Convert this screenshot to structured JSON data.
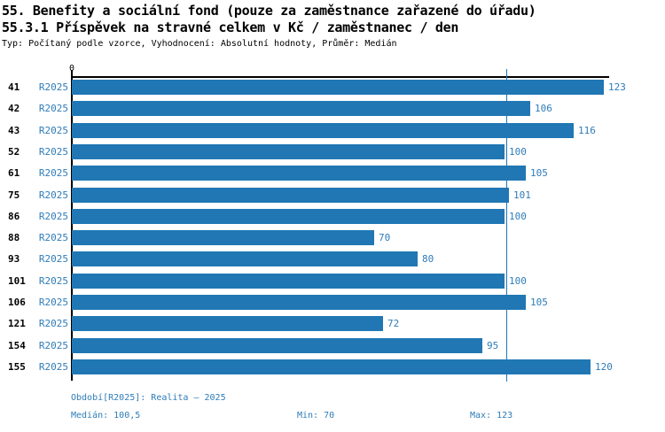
{
  "chart_data": {
    "type": "bar",
    "orientation": "horizontal",
    "title": "55. Benefity a sociální fond (pouze za zaměstnance zařazené do úřadu)",
    "subtitle": "55.3.1 Příspěvek na stravné celkem v Kč / zaměstnanec / den",
    "meta": "Typ: Počítaný podle vzorce, Vyhodnocení: Absolutní hodnoty, Průměr: Medián",
    "categories": [
      "41",
      "42",
      "43",
      "52",
      "61",
      "75",
      "86",
      "88",
      "93",
      "101",
      "106",
      "121",
      "154",
      "155"
    ],
    "series": [
      {
        "name": "R2025",
        "values": [
          123,
          106,
          116,
          100,
          105,
          101,
          100,
          70,
          80,
          100,
          105,
          72,
          95,
          120
        ]
      }
    ],
    "x_axis": {
      "origin_label": "0",
      "grid": false
    },
    "median": 100.5,
    "stats": {
      "median": "100,5",
      "min": 70,
      "max": 123
    },
    "legend_position": "none",
    "colors": {
      "bar": "#2077b4",
      "label": "#2e7cb8",
      "axis": "#000000",
      "background": "#ffffff"
    }
  },
  "footer": {
    "period": "Období[R2025]: Realita – 2025",
    "median_label": "Medián: 100,5",
    "min_label": "Min: 70",
    "max_label": "Max: 123"
  }
}
